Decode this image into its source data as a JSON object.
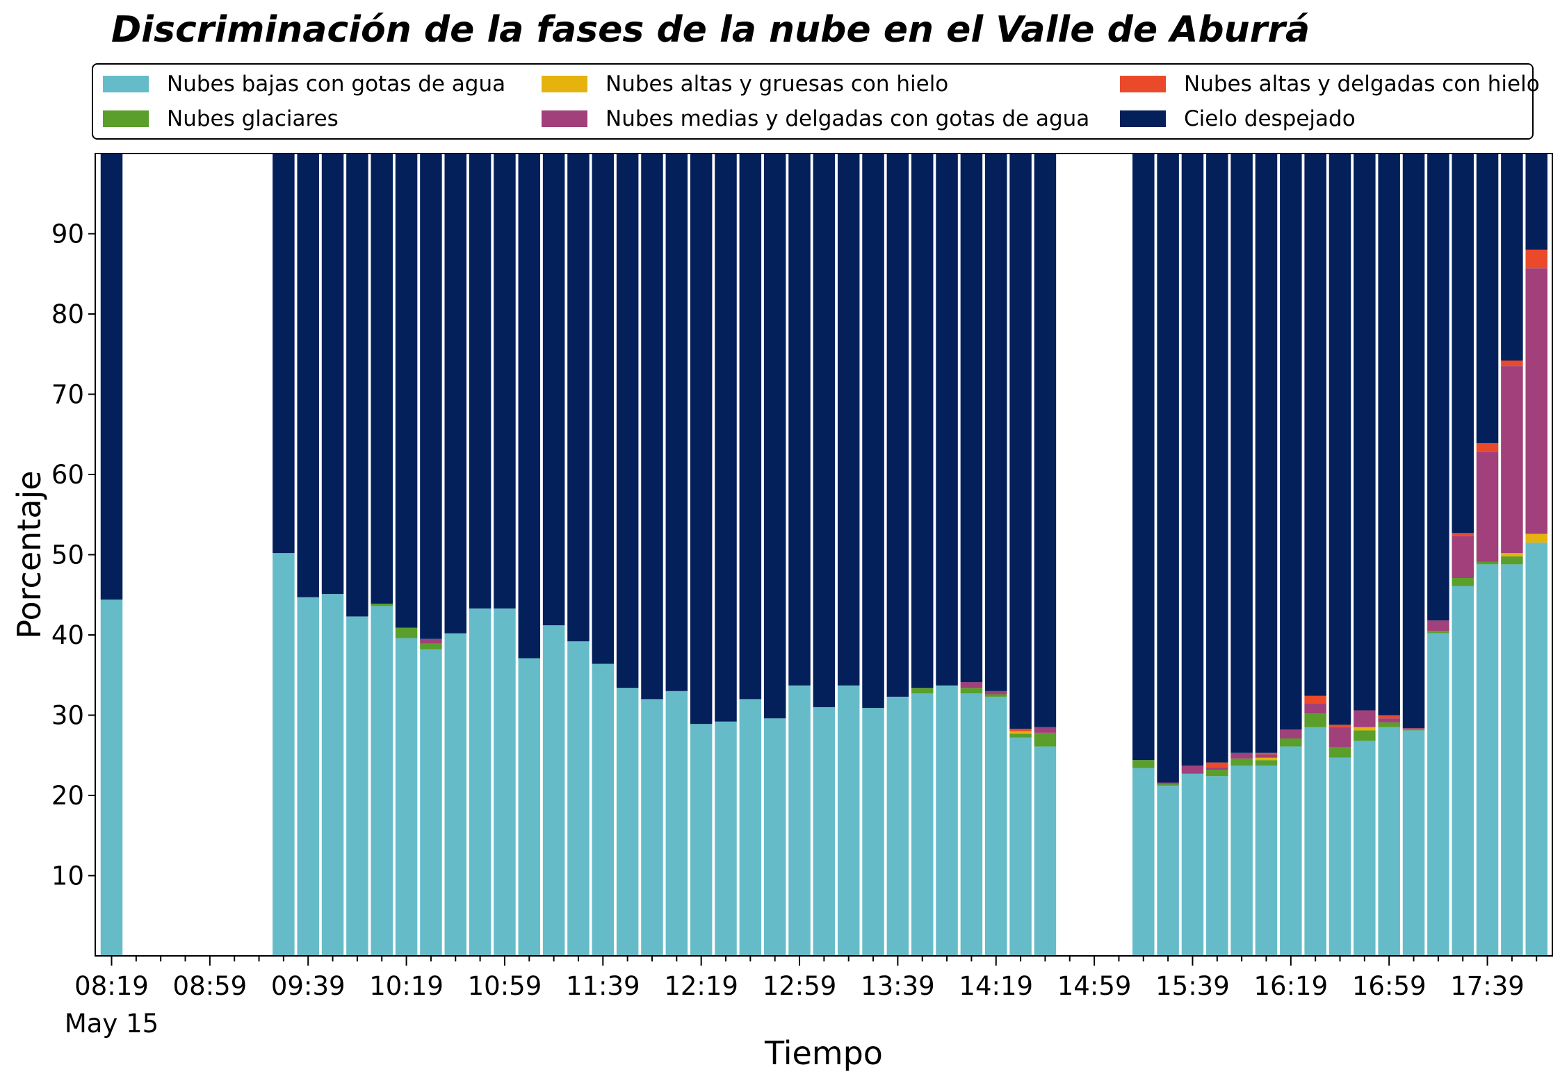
{
  "chart_data": {
    "type": "bar",
    "stacked": true,
    "title": "Discriminación de la fases de la nube en el Valle de Aburrá",
    "xlabel": "Tiempo",
    "ylabel": "Porcentaje",
    "ylim": [
      0,
      100
    ],
    "yticks": [
      10,
      20,
      30,
      40,
      50,
      60,
      70,
      80,
      90
    ],
    "grid": false,
    "legend_position": "top",
    "xtick_labels": [
      "08:19",
      "08:59",
      "09:39",
      "10:19",
      "10:59",
      "11:39",
      "12:19",
      "12:59",
      "13:39",
      "14:19",
      "14:59",
      "15:39",
      "16:19",
      "16:59",
      "17:39"
    ],
    "xtick_sublabel": "May 15",
    "x_start": "08:19",
    "x_interval_minutes": 10,
    "categories": [
      "08:19",
      "08:29",
      "08:39",
      "08:49",
      "08:59",
      "09:09",
      "09:19",
      "09:29",
      "09:39",
      "09:49",
      "09:59",
      "10:09",
      "10:19",
      "10:29",
      "10:39",
      "10:49",
      "10:59",
      "11:09",
      "11:19",
      "11:29",
      "11:39",
      "11:49",
      "11:59",
      "12:09",
      "12:19",
      "12:29",
      "12:39",
      "12:49",
      "12:59",
      "13:09",
      "13:19",
      "13:29",
      "13:39",
      "13:49",
      "13:59",
      "14:09",
      "14:19",
      "14:29",
      "14:39",
      "14:49",
      "14:59",
      "15:09",
      "15:19",
      "15:29",
      "15:39",
      "15:49",
      "15:59",
      "16:09",
      "16:19",
      "16:29",
      "16:39",
      "16:49",
      "16:59",
      "17:09",
      "17:19",
      "17:29",
      "17:39",
      "17:49",
      "17:59"
    ],
    "series": [
      {
        "name": "Nubes bajas con gotas de agua",
        "color": "#65BCC8",
        "values": [
          44.4,
          null,
          null,
          null,
          null,
          null,
          null,
          50.2,
          44.7,
          45.1,
          42.3,
          43.6,
          39.6,
          38.2,
          40.2,
          43.3,
          43.3,
          37.1,
          41.2,
          39.2,
          36.4,
          33.4,
          32.0,
          33.0,
          28.9,
          29.2,
          32.0,
          29.6,
          33.7,
          31.0,
          33.7,
          30.9,
          32.3,
          32.7,
          33.7,
          32.7,
          32.3,
          27.2,
          26.1,
          null,
          null,
          null,
          23.4,
          21.2,
          22.7,
          22.4,
          23.7,
          23.7,
          26.1,
          28.5,
          24.7,
          26.8,
          28.5,
          28.1,
          40.2,
          46.1,
          48.8,
          48.8,
          51.5
        ]
      },
      {
        "name": "Nubes glaciares",
        "color": "#5A9E2C",
        "values": [
          0,
          null,
          null,
          null,
          null,
          null,
          null,
          0,
          0,
          0,
          0,
          0.3,
          1.3,
          0.7,
          0,
          0,
          0,
          0,
          0,
          0,
          0,
          0,
          0,
          0,
          0,
          0,
          0,
          0,
          0,
          0,
          0,
          0,
          0,
          0.7,
          0,
          0.7,
          0.3,
          0.5,
          1.7,
          null,
          null,
          null,
          1.0,
          0.2,
          0,
          0.8,
          0.9,
          0.7,
          1.0,
          1.7,
          1.3,
          1.3,
          0.6,
          0.2,
          0.3,
          1.0,
          0.3,
          1.0,
          0
        ]
      },
      {
        "name": "Nubes altas y gruesas con hielo",
        "color": "#E5B20E",
        "values": [
          0,
          null,
          null,
          null,
          null,
          null,
          null,
          0,
          0,
          0,
          0,
          0,
          0,
          0,
          0,
          0,
          0,
          0,
          0,
          0,
          0,
          0,
          0,
          0,
          0,
          0,
          0,
          0,
          0,
          0,
          0,
          0,
          0,
          0,
          0,
          0,
          0,
          0.3,
          0,
          null,
          null,
          null,
          0,
          0,
          0,
          0,
          0,
          0.3,
          0,
          0,
          0,
          0.4,
          0,
          0,
          0,
          0,
          0,
          0.4,
          1.1
        ]
      },
      {
        "name": "Nubes medias y delgadas con gotas de agua",
        "color": "#A1407A",
        "values": [
          0,
          null,
          null,
          null,
          null,
          null,
          null,
          0,
          0,
          0,
          0,
          0,
          0,
          0.6,
          0,
          0,
          0,
          0,
          0,
          0,
          0,
          0,
          0,
          0,
          0,
          0,
          0,
          0,
          0,
          0,
          0,
          0,
          0,
          0,
          0,
          0.7,
          0.4,
          0,
          0.7,
          null,
          null,
          null,
          0,
          0.2,
          1.0,
          0.3,
          0.7,
          0.4,
          1.1,
          1.3,
          2.5,
          2.1,
          0.5,
          0.1,
          1.3,
          5.2,
          13.7,
          23.3,
          33.1
        ]
      },
      {
        "name": "Nubes altas y delgadas con hielo",
        "color": "#EA4A2A",
        "values": [
          0,
          null,
          null,
          null,
          null,
          null,
          null,
          0,
          0,
          0,
          0,
          0,
          0,
          0,
          0,
          0,
          0,
          0,
          0,
          0,
          0,
          0,
          0,
          0,
          0,
          0,
          0,
          0,
          0,
          0,
          0,
          0,
          0,
          0,
          0,
          0,
          0,
          0.3,
          0,
          null,
          null,
          null,
          0,
          0,
          0,
          0.6,
          0,
          0.2,
          0,
          0.9,
          0.3,
          0,
          0.4,
          0,
          0,
          0.4,
          1.1,
          0.7,
          2.3
        ]
      },
      {
        "name": "Cielo despejado",
        "color": "#04205B",
        "values": [
          55.6,
          null,
          null,
          null,
          null,
          null,
          null,
          49.8,
          55.3,
          54.9,
          57.7,
          56.1,
          59.1,
          60.5,
          59.8,
          56.7,
          56.7,
          62.9,
          58.8,
          60.8,
          63.6,
          66.6,
          68.0,
          67.0,
          71.1,
          70.8,
          68.0,
          70.4,
          66.3,
          69.0,
          66.3,
          69.1,
          67.7,
          66.6,
          66.3,
          65.9,
          67.0,
          71.7,
          71.5,
          null,
          null,
          null,
          75.6,
          78.4,
          76.3,
          75.9,
          74.7,
          74.7,
          71.8,
          67.6,
          71.2,
          69.4,
          70.0,
          71.6,
          58.2,
          47.3,
          36.1,
          25.8,
          12.0
        ]
      }
    ]
  }
}
